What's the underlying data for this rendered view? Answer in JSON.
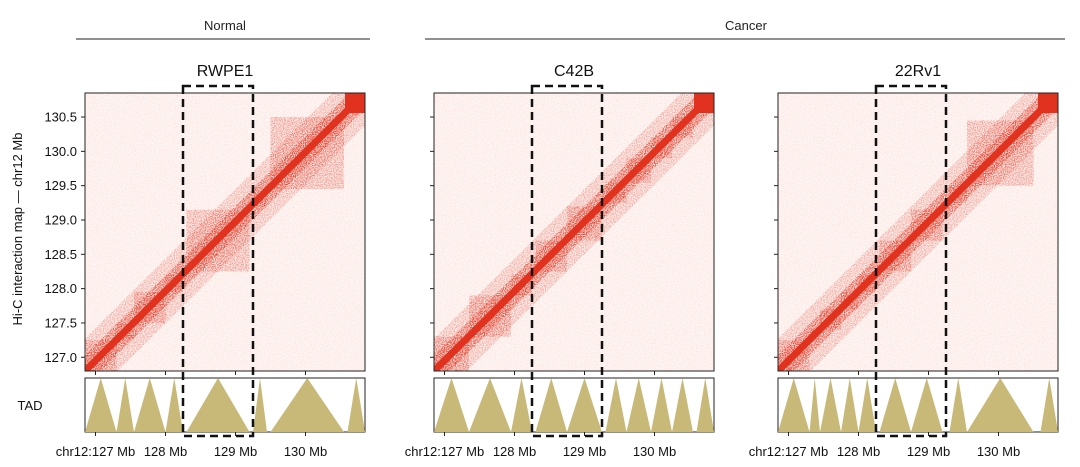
{
  "groups": [
    {
      "label": "Normal"
    },
    {
      "label": "Cancer"
    }
  ],
  "ylabel": "Hi-C interaction map — chr12 Mb",
  "tad_label": "TAD",
  "colors": {
    "heat": "#e0321e",
    "tad": "#c9b979",
    "box": "#111111",
    "axis": "#222222"
  },
  "chart_data": [
    {
      "type": "heatmap",
      "title": "RWPE1",
      "group": "Normal",
      "xlabel_ticks": [
        {
          "value": 127,
          "label": "chr12:127 Mb"
        },
        {
          "value": 128,
          "label": "128 Mb"
        },
        {
          "value": 129,
          "label": "129 Mb"
        },
        {
          "value": 130,
          "label": "130 Mb"
        }
      ],
      "yticks": [
        127.0,
        127.5,
        128.0,
        128.5,
        129.0,
        129.5,
        130.0,
        130.5
      ],
      "ytick_labels": [
        "127.0",
        "127.5",
        "128.0",
        "128.5",
        "129.0",
        "129.5",
        "130.0",
        "130.5"
      ],
      "xlim": [
        126.85,
        130.85
      ],
      "ylim": [
        126.8,
        130.85
      ],
      "highlight_region": [
        128.25,
        129.25
      ],
      "tads": [
        [
          126.85,
          127.3
        ],
        [
          127.3,
          127.55
        ],
        [
          127.55,
          128.0
        ],
        [
          128.0,
          128.25
        ],
        [
          128.3,
          129.2
        ],
        [
          129.25,
          129.45
        ],
        [
          129.5,
          130.55
        ],
        [
          130.6,
          130.85
        ]
      ]
    },
    {
      "type": "heatmap",
      "title": "C42B",
      "group": "Cancer",
      "xlabel_ticks": [
        {
          "value": 127,
          "label": "chr12:127 Mb"
        },
        {
          "value": 128,
          "label": "128 Mb"
        },
        {
          "value": 129,
          "label": "129 Mb"
        },
        {
          "value": 130,
          "label": "130 Mb"
        }
      ],
      "yticks": [
        127.0,
        127.5,
        128.0,
        128.5,
        129.0,
        129.5,
        130.0,
        130.5
      ],
      "ytick_labels": [
        "127.0",
        "127.5",
        "128.0",
        "128.5",
        "129.0",
        "129.5",
        "130.0",
        "130.5"
      ],
      "xlim": [
        126.85,
        130.85
      ],
      "ylim": [
        126.8,
        130.85
      ],
      "highlight_region": [
        128.25,
        129.25
      ],
      "tads": [
        [
          126.85,
          127.35
        ],
        [
          127.35,
          127.95
        ],
        [
          127.95,
          128.25
        ],
        [
          128.3,
          128.75
        ],
        [
          128.75,
          129.25
        ],
        [
          129.3,
          129.6
        ],
        [
          129.6,
          129.95
        ],
        [
          129.95,
          130.25
        ],
        [
          130.25,
          130.55
        ],
        [
          130.6,
          130.85
        ]
      ]
    },
    {
      "type": "heatmap",
      "title": "22Rv1",
      "group": "Cancer",
      "xlabel_ticks": [
        {
          "value": 127,
          "label": "chr12:127 Mb"
        },
        {
          "value": 128,
          "label": "128 Mb"
        },
        {
          "value": 129,
          "label": "129 Mb"
        },
        {
          "value": 130,
          "label": "130 Mb"
        }
      ],
      "yticks": [
        127.0,
        127.5,
        128.0,
        128.5,
        129.0,
        129.5,
        130.0,
        130.5
      ],
      "ytick_labels": [
        "127.0",
        "127.5",
        "128.0",
        "128.5",
        "129.0",
        "129.5",
        "130.0",
        "130.5"
      ],
      "xlim": [
        126.85,
        130.85
      ],
      "ylim": [
        126.8,
        130.85
      ],
      "highlight_region": [
        128.25,
        129.25
      ],
      "tads": [
        [
          126.85,
          127.3
        ],
        [
          127.3,
          127.45
        ],
        [
          127.45,
          127.75
        ],
        [
          127.75,
          128.0
        ],
        [
          128.0,
          128.25
        ],
        [
          128.3,
          128.75
        ],
        [
          128.75,
          129.2
        ],
        [
          129.3,
          129.55
        ],
        [
          129.55,
          130.5
        ],
        [
          130.6,
          130.85
        ]
      ]
    }
  ]
}
